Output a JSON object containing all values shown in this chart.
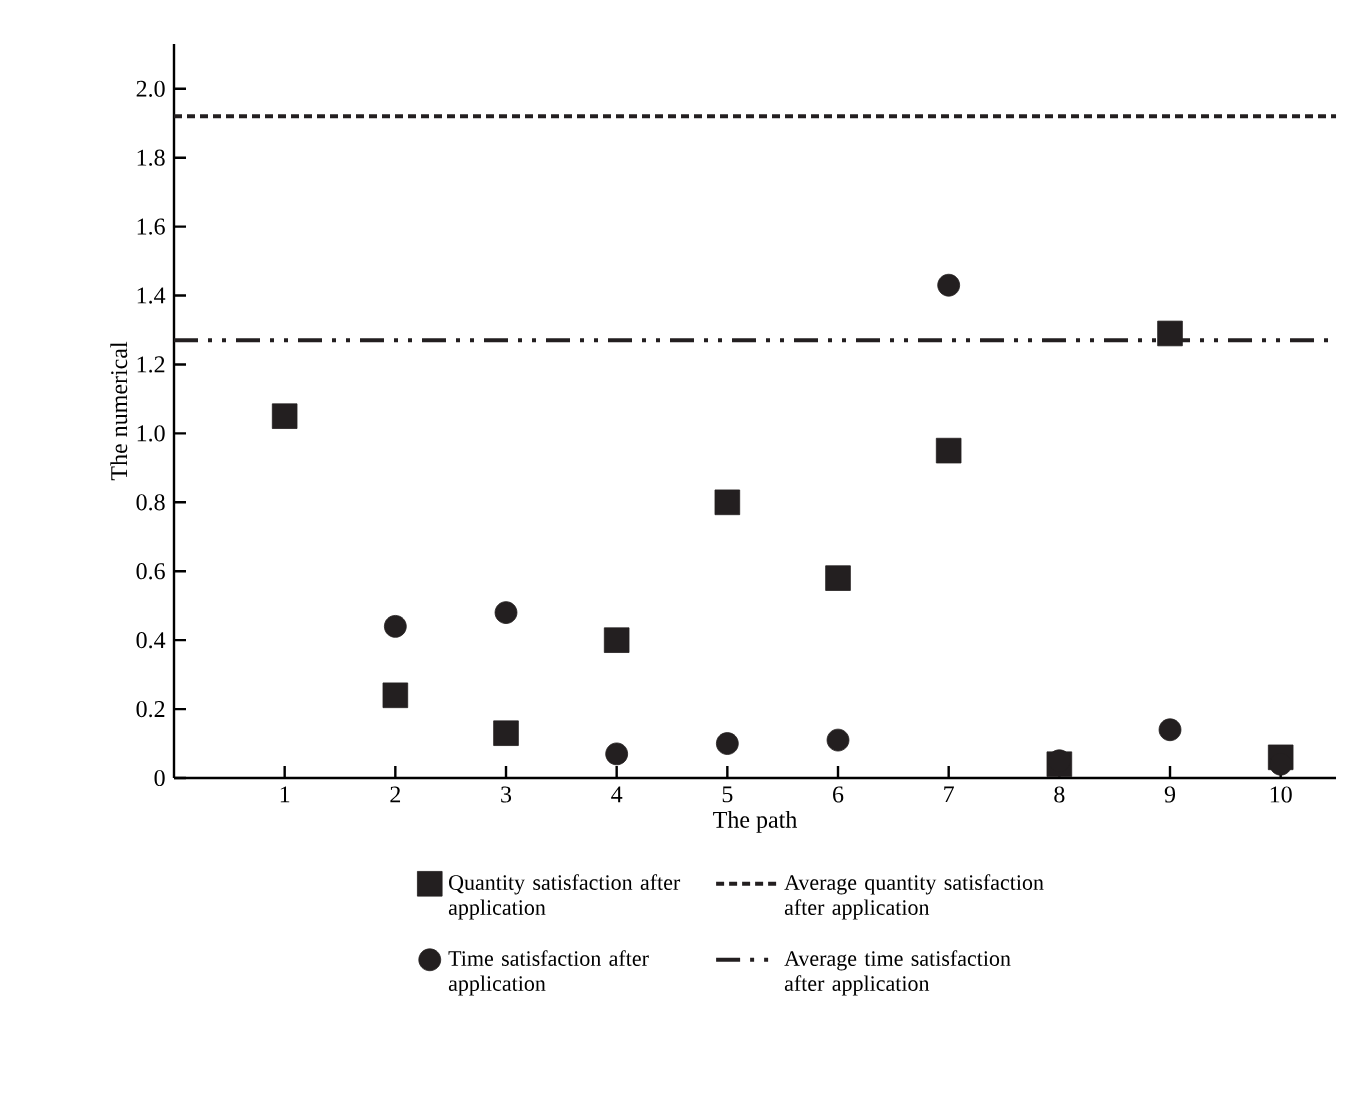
{
  "chart_data": {
    "type": "scatter",
    "xlabel": "The path",
    "ylabel": "The numerical",
    "x": [
      1,
      2,
      3,
      4,
      5,
      6,
      7,
      8,
      9,
      10
    ],
    "xlim": [
      0,
      10.5
    ],
    "xticks": [
      1,
      2,
      3,
      4,
      5,
      6,
      7,
      8,
      9,
      10
    ],
    "ylim": [
      0,
      2.13
    ],
    "yticks": [
      0,
      {
        "value": 0.2,
        "label": "0.2"
      },
      {
        "value": 0.4,
        "label": "0.4"
      },
      {
        "value": 0.6,
        "label": "0.6"
      },
      {
        "value": 0.8,
        "label": "0.8"
      },
      {
        "value": 1.0,
        "label": "1.0"
      },
      {
        "value": 1.2,
        "label": "1.2"
      },
      {
        "value": 1.4,
        "label": "1.4"
      },
      {
        "value": 1.6,
        "label": "1.6"
      },
      {
        "value": 1.8,
        "label": "1.8"
      },
      {
        "value": 2.0,
        "label": "2.0"
      }
    ],
    "series": [
      {
        "name": "Quantity satisfaction after application",
        "color": "#231f20",
        "marker": "square",
        "values": [
          1.05,
          0.24,
          0.13,
          0.4,
          0.8,
          0.58,
          0.95,
          0.04,
          1.29,
          0.06
        ]
      },
      {
        "name": "Time satisfaction after application",
        "color": "#231f20",
        "marker": "circle",
        "values": [
          null,
          0.44,
          0.48,
          0.07,
          0.1,
          0.11,
          1.43,
          0.05,
          0.14,
          0.04
        ]
      }
    ],
    "ref_lines": [
      {
        "axis": "y",
        "value": 1.92,
        "label": "Average quantity satisfaction after application",
        "color": "#231f20",
        "line_style": "dashed"
      },
      {
        "axis": "y",
        "value": 1.27,
        "label": "Average time satisfaction after application",
        "color": "#231f20",
        "line_style": "dashdotted"
      }
    ],
    "legend": "bottom",
    "grid": false
  }
}
